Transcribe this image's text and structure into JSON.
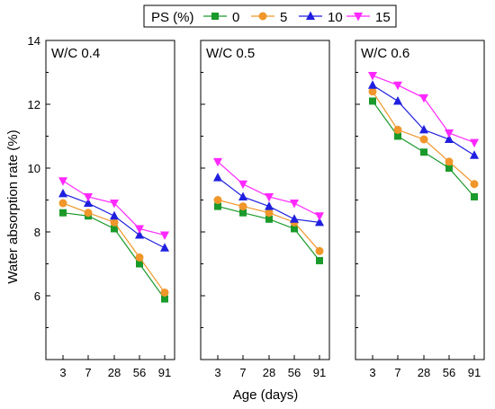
{
  "chart_data": {
    "type": "line",
    "ylabel": "Water absorption rate (%)",
    "xlabel": "Age (days)",
    "categories": [
      "3",
      "7",
      "28",
      "56",
      "91"
    ],
    "ylim": [
      4,
      14
    ],
    "yticks": [
      "6",
      "8",
      "10",
      "12",
      "14"
    ],
    "legend": {
      "title": "PS (%)",
      "placement": "top-center",
      "entries": [
        {
          "name": "0",
          "color": "#1a9a2a",
          "marker": "square"
        },
        {
          "name": "5",
          "color": "#f0962a",
          "marker": "circle"
        },
        {
          "name": "10",
          "color": "#1f1fe0",
          "marker": "triangle-up"
        },
        {
          "name": "15",
          "color": "#ff28ff",
          "marker": "triangle-down"
        }
      ]
    },
    "grid": false,
    "panels": [
      {
        "label": "W/C 0.4",
        "series": [
          {
            "name": "0",
            "values": [
              8.6,
              8.5,
              8.1,
              7.0,
              5.9
            ]
          },
          {
            "name": "5",
            "values": [
              8.9,
              8.6,
              8.3,
              7.2,
              6.1
            ]
          },
          {
            "name": "10",
            "values": [
              9.2,
              8.9,
              8.5,
              7.9,
              7.5
            ]
          },
          {
            "name": "15",
            "values": [
              9.6,
              9.1,
              8.9,
              8.1,
              7.9
            ]
          }
        ]
      },
      {
        "label": "W/C 0.5",
        "series": [
          {
            "name": "0",
            "values": [
              8.8,
              8.6,
              8.4,
              8.1,
              7.1
            ]
          },
          {
            "name": "5",
            "values": [
              9.0,
              8.8,
              8.6,
              8.3,
              7.4
            ]
          },
          {
            "name": "10",
            "values": [
              9.7,
              9.1,
              8.8,
              8.4,
              8.3
            ]
          },
          {
            "name": "15",
            "values": [
              10.2,
              9.5,
              9.1,
              8.9,
              8.5
            ]
          }
        ]
      },
      {
        "label": "W/C 0.6",
        "series": [
          {
            "name": "0",
            "values": [
              12.1,
              11.0,
              10.5,
              10.0,
              9.1
            ]
          },
          {
            "name": "5",
            "values": [
              12.4,
              11.2,
              10.9,
              10.2,
              9.5
            ]
          },
          {
            "name": "10",
            "values": [
              12.6,
              12.1,
              11.2,
              10.9,
              10.4
            ]
          },
          {
            "name": "15",
            "values": [
              12.9,
              12.6,
              12.2,
              11.1,
              10.8
            ]
          }
        ]
      }
    ]
  }
}
